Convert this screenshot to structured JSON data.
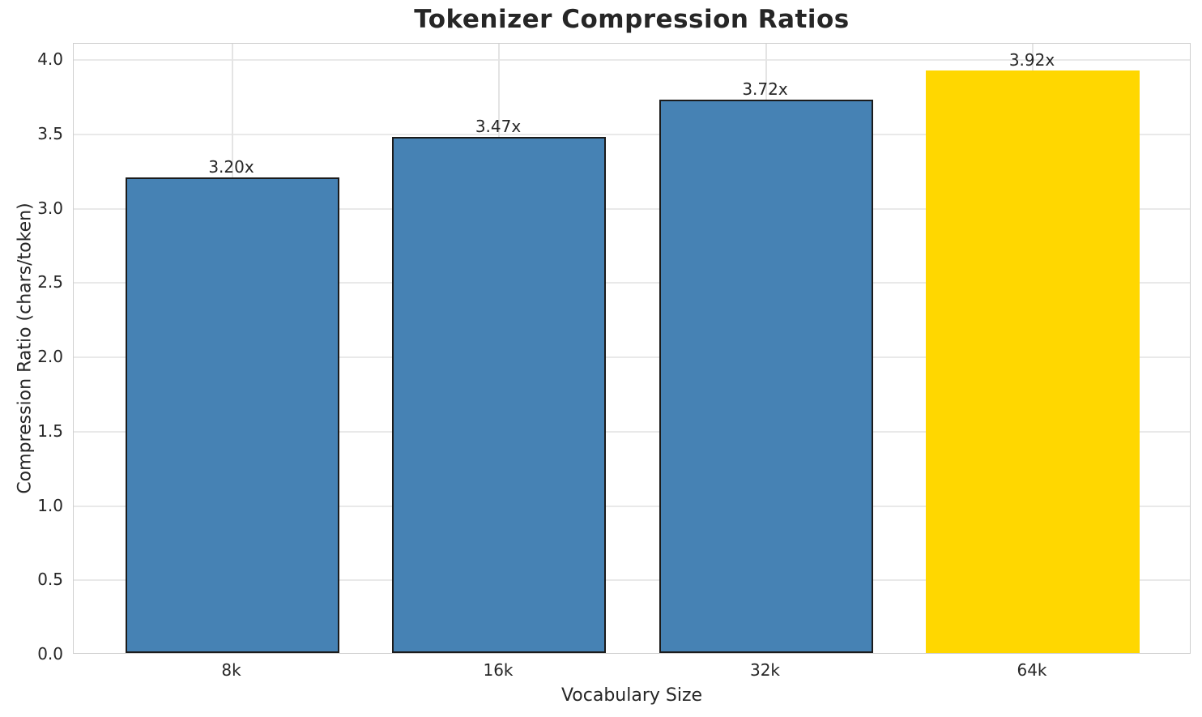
{
  "chart_data": {
    "type": "bar",
    "title": "Tokenizer Compression Ratios",
    "xlabel": "Vocabulary Size",
    "ylabel": "Compression Ratio (chars/token)",
    "categories": [
      "8k",
      "16k",
      "32k",
      "64k"
    ],
    "values": [
      3.2,
      3.47,
      3.72,
      3.92
    ],
    "bar_labels": [
      "3.20x",
      "3.47x",
      "3.72x",
      "3.92x"
    ],
    "bar_colors": [
      "#4682B4",
      "#4682B4",
      "#4682B4",
      "#FFD700"
    ],
    "bar_edge_colors": [
      "#1b1b1b",
      "#1b1b1b",
      "#1b1b1b",
      "#FFD700"
    ],
    "ylim": [
      0.0,
      4.0
    ],
    "yticks": [
      "0.0",
      "0.5",
      "1.0",
      "1.5",
      "2.0",
      "2.5",
      "3.0",
      "3.5",
      "4.0"
    ],
    "grid": "both",
    "legend": "none",
    "colors": {
      "series": "#4682B4",
      "highlight": "#FFD700",
      "text": "#262626",
      "grid": "#e9e9e9",
      "spine": "#cfcfcf",
      "background": "#ffffff"
    }
  }
}
